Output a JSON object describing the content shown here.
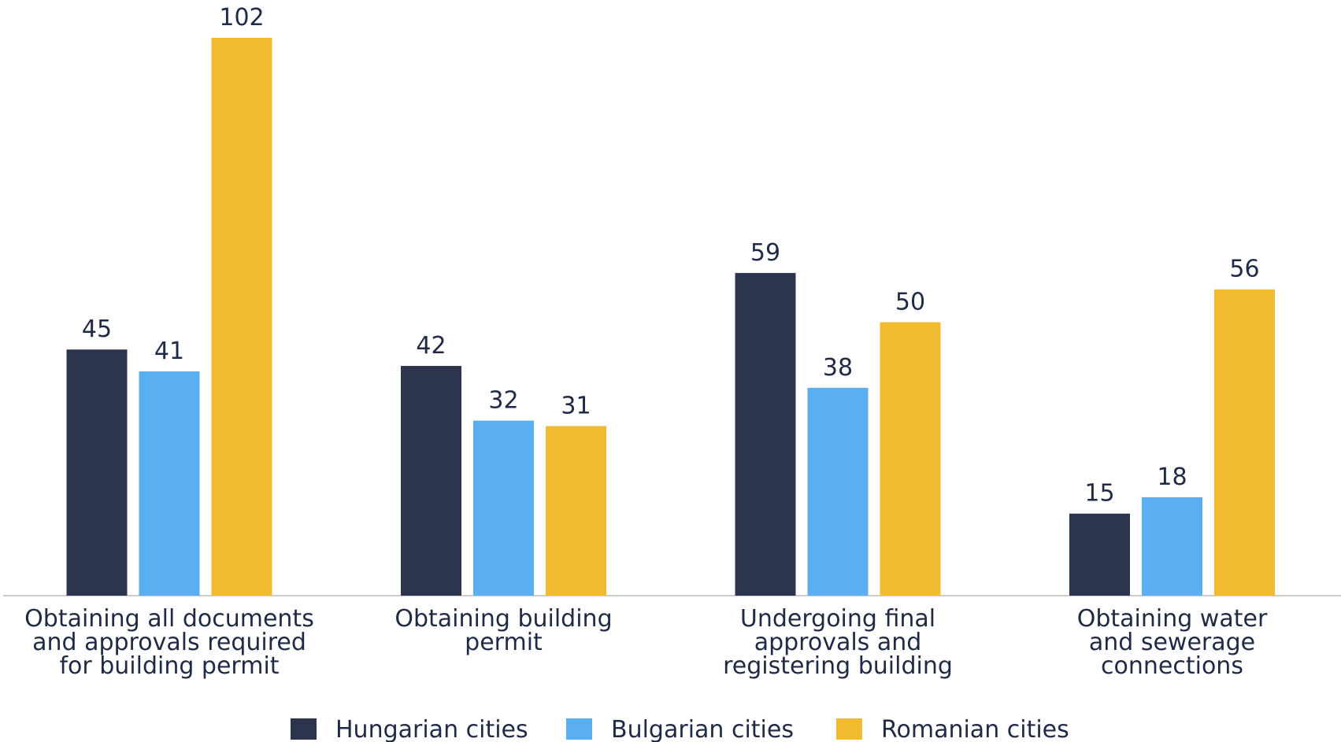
{
  "chart_data": {
    "type": "bar",
    "categories": [
      "Obtaining all documents\nand approvals required\nfor building permit",
      "Obtaining building\npermit",
      "Undergoing final\napprovals and\nregistering building",
      "Obtaining water\nand sewerage\nconnections"
    ],
    "series": [
      {
        "name": "Hungarian cities",
        "color": "#2d344d",
        "values": [
          45,
          42,
          59,
          15
        ]
      },
      {
        "name": "Bulgarian cities",
        "color": "#5aaff0",
        "values": [
          41,
          32,
          38,
          18
        ]
      },
      {
        "name": "Romanian cities",
        "color": "#f0bb2e",
        "values": [
          102,
          31,
          50,
          56
        ]
      }
    ],
    "legend": "bottom"
  }
}
